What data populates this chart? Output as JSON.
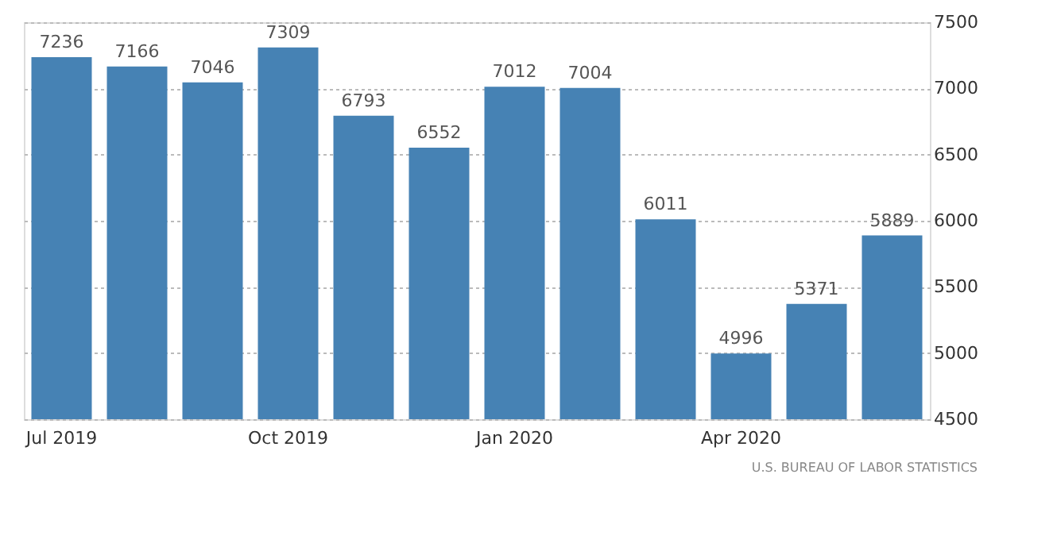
{
  "chart_data": {
    "type": "bar",
    "categories": [
      "Jul 2019",
      null,
      null,
      "Oct 2019",
      null,
      null,
      "Jan 2020",
      null,
      null,
      "Apr 2020",
      null,
      null
    ],
    "values": [
      7236,
      7166,
      7046,
      7309,
      6793,
      6552,
      7012,
      7004,
      6011,
      4996,
      5371,
      5889
    ],
    "color": "#4682b4",
    "ylim": [
      4500,
      7500
    ],
    "yticks": [
      4500,
      5000,
      5500,
      6000,
      6500,
      7000,
      7500
    ],
    "grid": "y",
    "data_labels": true,
    "annotations": [
      "U.S. BUREAU OF LABOR STATISTICS"
    ]
  }
}
